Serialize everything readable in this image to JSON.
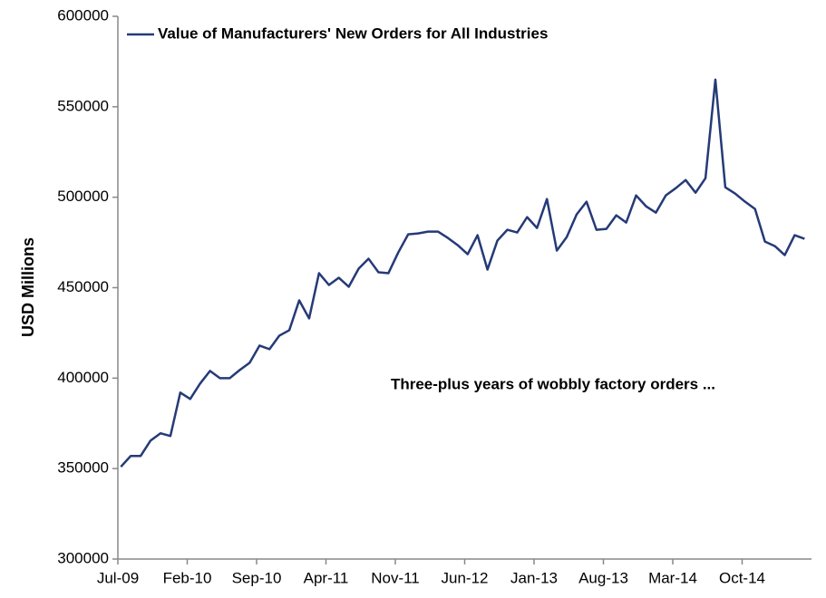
{
  "chart_data": {
    "type": "line",
    "y_label": "USD Millions",
    "annotation": "Three-plus years of wobbly factory orders ...",
    "categories": [
      "Jul-09",
      null,
      null,
      null,
      null,
      null,
      null,
      "Feb-10",
      null,
      null,
      null,
      null,
      null,
      null,
      "Sep-10",
      null,
      null,
      null,
      null,
      null,
      null,
      "Apr-11",
      null,
      null,
      null,
      null,
      null,
      null,
      "Nov-11",
      null,
      null,
      null,
      null,
      null,
      null,
      "Jun-12",
      null,
      null,
      null,
      null,
      null,
      null,
      "Jan-13",
      null,
      null,
      null,
      null,
      null,
      null,
      "Aug-13",
      null,
      null,
      null,
      null,
      null,
      null,
      "Mar-14",
      null,
      null,
      null,
      null,
      null,
      null,
      "Oct-14",
      null,
      null,
      null,
      null,
      null,
      null
    ],
    "series": [
      {
        "name": "Value of Manufacturers' New Orders for All Industries",
        "color": "#253a77",
        "values": [
          351000,
          357000,
          357000,
          365500,
          369500,
          368000,
          392000,
          388500,
          397000,
          404000,
          400000,
          400000,
          404500,
          408500,
          418000,
          416000,
          423500,
          426500,
          443000,
          433000,
          458000,
          451500,
          455500,
          450500,
          460500,
          466000,
          458500,
          458000,
          469500,
          479500,
          480000,
          481000,
          481000,
          477500,
          473500,
          468500,
          479000,
          460000,
          476000,
          482000,
          480500,
          489000,
          483000,
          499000,
          470500,
          478000,
          490500,
          497500,
          482000,
          482500,
          490000,
          486000,
          501000,
          495000,
          491500,
          501000,
          505000,
          509500,
          502500,
          510500,
          565000,
          505500,
          502000,
          497500,
          493500,
          475500,
          473000,
          468000,
          479000,
          477000
        ]
      }
    ],
    "ylim": [
      300000,
      600000
    ],
    "yticks": [
      300000,
      350000,
      400000,
      450000,
      500000,
      550000,
      600000
    ],
    "grid": false,
    "legend": "top-left"
  }
}
